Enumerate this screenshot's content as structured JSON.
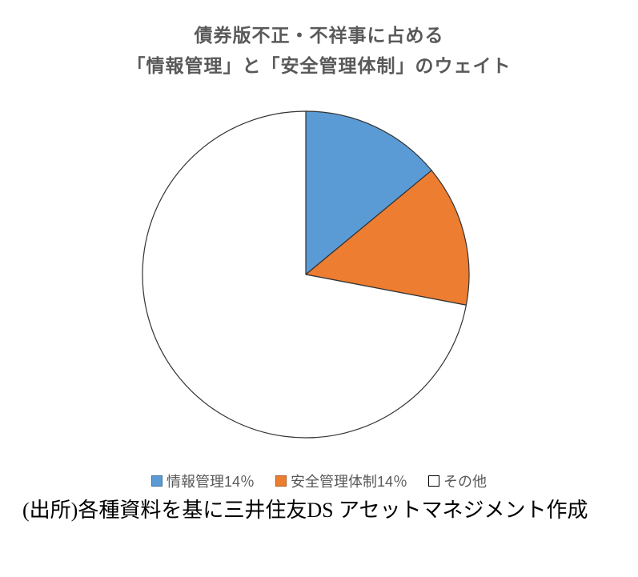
{
  "title": {
    "line1": "債券版不正・不祥事に占める",
    "line2": "「情報管理」と「安全管理体制」のウェイト"
  },
  "chart_data": {
    "type": "pie",
    "title": "債券版不正・不祥事に占める「情報管理」と「安全管理体制」のウェイト",
    "slices": [
      {
        "name": "情報管理",
        "label": "情報管理14％",
        "value": 14,
        "color": "#5B9BD5",
        "border_color": "#41719C"
      },
      {
        "name": "安全管理体制",
        "label": "安全管理体制14％",
        "value": 14,
        "color": "#ED7D31",
        "border_color": "#AE5A21"
      },
      {
        "name": "その他",
        "label": "その他",
        "value": 72,
        "color": "#FFFFFF",
        "border_color": "#000000"
      }
    ],
    "start_angle_deg": 0,
    "direction": "clockwise",
    "legend_position": "bottom",
    "outline_color": "#333333"
  },
  "source": {
    "text": "(出所)各種資料を基に三井住友DS アセットマネジメント作成"
  },
  "colors": {
    "background": "#FFFFFF",
    "title_text": "#595959",
    "legend_text": "#595959",
    "source_text": "#000000"
  }
}
